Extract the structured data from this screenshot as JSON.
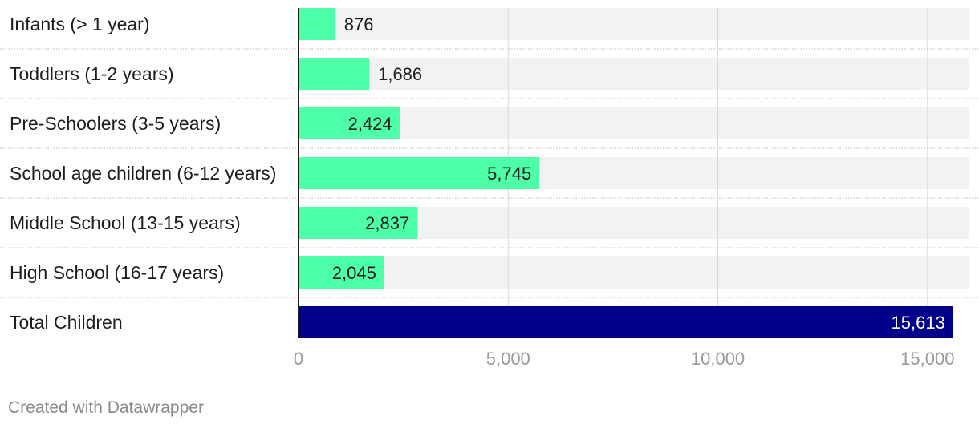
{
  "chart_data": {
    "type": "bar",
    "orientation": "horizontal",
    "categories": [
      "Infants (> 1 year)",
      "Toddlers (1-2 years)",
      "Pre-Schoolers (3-5 years)",
      "School age children (6-12 years)",
      "Middle School (13-15 years)",
      "High School (16-17 years)",
      "Total Children"
    ],
    "values": [
      876,
      1686,
      2424,
      5745,
      2837,
      2045,
      15613
    ],
    "value_labels": [
      "876",
      "1,686",
      "2,424",
      "5,745",
      "2,837",
      "2,045",
      "15,613"
    ],
    "xlim": [
      0,
      15999
    ],
    "xticks": [
      0,
      5000,
      10000,
      15000
    ],
    "xtick_labels": [
      "0",
      "5,000",
      "10,000",
      "15,000"
    ],
    "grid": true,
    "colors": {
      "bar": "#4dffa6",
      "total_bar": "#00008b",
      "track": "#f2f2f2",
      "grid": "#d9d9d9",
      "value_text": "#1d1d1d",
      "total_value_text": "#ffffff"
    }
  },
  "footer": "Created with Datawrapper"
}
